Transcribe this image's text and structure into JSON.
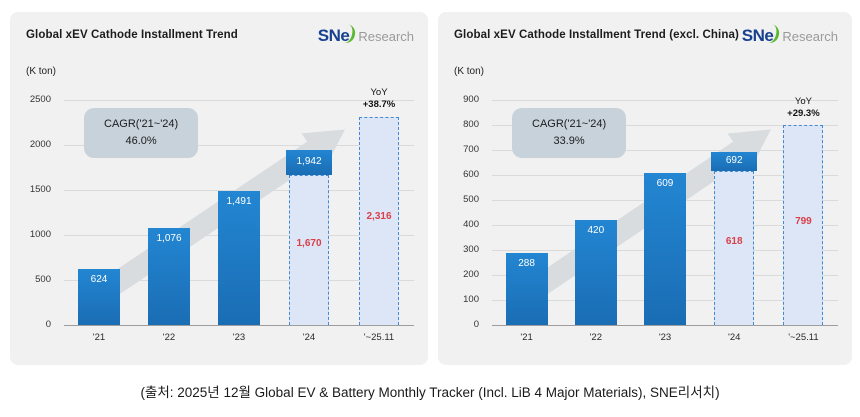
{
  "caption": "(출처: 2025년 12월 Global EV & Battery Monthly Tracker (Incl. LiB 4 Major Materials), SNE리서치)",
  "logo": {
    "wordmark": "SNe",
    "research": "Research"
  },
  "colors": {
    "bar_blue": "#1b77c6",
    "dashed_fill": "#dce6f6",
    "dashed_border": "#4189d2",
    "red_label": "#d8404a",
    "panel_bg": "#f1f1f1",
    "cagr_box_bg": "#c7d2da",
    "arrow_gray": "#d8dcdf",
    "logo_navy": "#17418f",
    "logo_green": "#5cb832",
    "logo_gray": "#9a9a9a"
  },
  "chart_data": [
    {
      "type": "bar",
      "title": "Global xEV Cathode Installment Trend",
      "ylabel": "(K ton)",
      "ylim": [
        0,
        2500
      ],
      "ytick_step": 500,
      "grid": true,
      "legend": "none",
      "categories": [
        "'21",
        "'22",
        "'23",
        "'24",
        "'~25.11"
      ],
      "values": [
        624,
        1076,
        1491,
        1942,
        2316
      ],
      "cagr": {
        "label": "CAGR('21~'24)",
        "value": "46.0%"
      },
      "yoy": {
        "label": "YoY",
        "value": "+38.7%"
      },
      "bars": [
        {
          "category": "'21",
          "style": "solid",
          "value": 624,
          "label": "624"
        },
        {
          "category": "'22",
          "style": "solid",
          "value": 1076,
          "label": "1,076"
        },
        {
          "category": "'23",
          "style": "solid",
          "value": 1491,
          "label": "1,491"
        },
        {
          "category": "'24",
          "style": "solid_over_dashed",
          "value": 1942,
          "label": "1,942",
          "partial_value": 1670,
          "partial_label": "1,670"
        },
        {
          "category": "'~25.11",
          "style": "dashed",
          "value": 2316,
          "label": "2,316",
          "show_yoy": true
        }
      ]
    },
    {
      "type": "bar",
      "title": "Global xEV Cathode Installment Trend (excl. China)",
      "ylabel": "(K ton)",
      "ylim": [
        0,
        900
      ],
      "ytick_step": 100,
      "grid": true,
      "legend": "none",
      "categories": [
        "'21",
        "'22",
        "'23",
        "'24",
        "'~25.11"
      ],
      "values": [
        288,
        420,
        609,
        692,
        799
      ],
      "cagr": {
        "label": "CAGR('21~'24)",
        "value": "33.9%"
      },
      "yoy": {
        "label": "YoY",
        "value": "+29.3%"
      },
      "bars": [
        {
          "category": "'21",
          "style": "solid",
          "value": 288,
          "label": "288"
        },
        {
          "category": "'22",
          "style": "solid",
          "value": 420,
          "label": "420"
        },
        {
          "category": "'23",
          "style": "solid",
          "value": 609,
          "label": "609"
        },
        {
          "category": "'24",
          "style": "solid_over_dashed",
          "value": 692,
          "label": "692",
          "partial_value": 618,
          "partial_label": "618"
        },
        {
          "category": "'~25.11",
          "style": "dashed",
          "value": 799,
          "label": "799",
          "show_yoy": true
        }
      ]
    }
  ]
}
